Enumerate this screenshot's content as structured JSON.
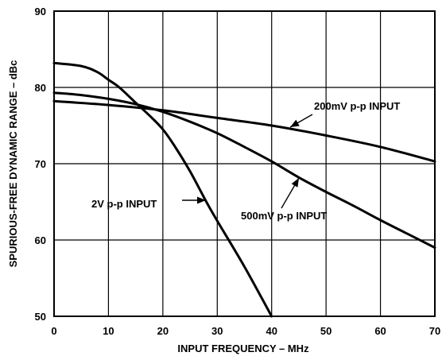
{
  "chart_data": {
    "type": "line",
    "title": "",
    "xlabel": "INPUT FREQUENCY – MHz",
    "ylabel": "SPURIOUS-FREE DYNAMIC RANGE – dBc",
    "xlim": [
      0,
      70
    ],
    "ylim": [
      50,
      90
    ],
    "x_ticks": [
      0,
      10,
      20,
      30,
      40,
      50,
      60,
      70
    ],
    "y_ticks": [
      50,
      60,
      70,
      80,
      90
    ],
    "grid": true,
    "legend": "none",
    "series": [
      {
        "name": "200mV p-p INPUT",
        "x": [
          0,
          10,
          20,
          30,
          40,
          50,
          60,
          70
        ],
        "values": [
          78.2,
          77.7,
          77.0,
          76.0,
          75.0,
          73.7,
          72.2,
          70.3
        ]
      },
      {
        "name": "500mV p-p INPUT",
        "x": [
          0,
          5,
          10,
          15,
          20,
          25,
          30,
          35,
          40,
          45,
          50,
          55,
          60,
          65,
          70
        ],
        "values": [
          79.3,
          79.0,
          78.5,
          77.8,
          76.8,
          75.5,
          74.0,
          72.2,
          70.3,
          68.2,
          66.3,
          64.5,
          62.6,
          60.8,
          59.0
        ]
      },
      {
        "name": "2V p-p INPUT",
        "x": [
          0,
          5,
          8,
          10,
          12,
          15,
          18,
          20,
          22,
          25,
          28,
          30,
          35,
          40
        ],
        "values": [
          83.2,
          82.8,
          82.0,
          81.0,
          80.0,
          78.0,
          76.0,
          74.5,
          72.5,
          69.0,
          65.0,
          62.5,
          56.5,
          50.0
        ]
      }
    ],
    "annotations": [
      {
        "text": "200mV p-p INPUT",
        "series": 0
      },
      {
        "text": "500mV p-p INPUT",
        "series": 1
      },
      {
        "text": "2V p-p INPUT",
        "series": 2
      }
    ]
  }
}
